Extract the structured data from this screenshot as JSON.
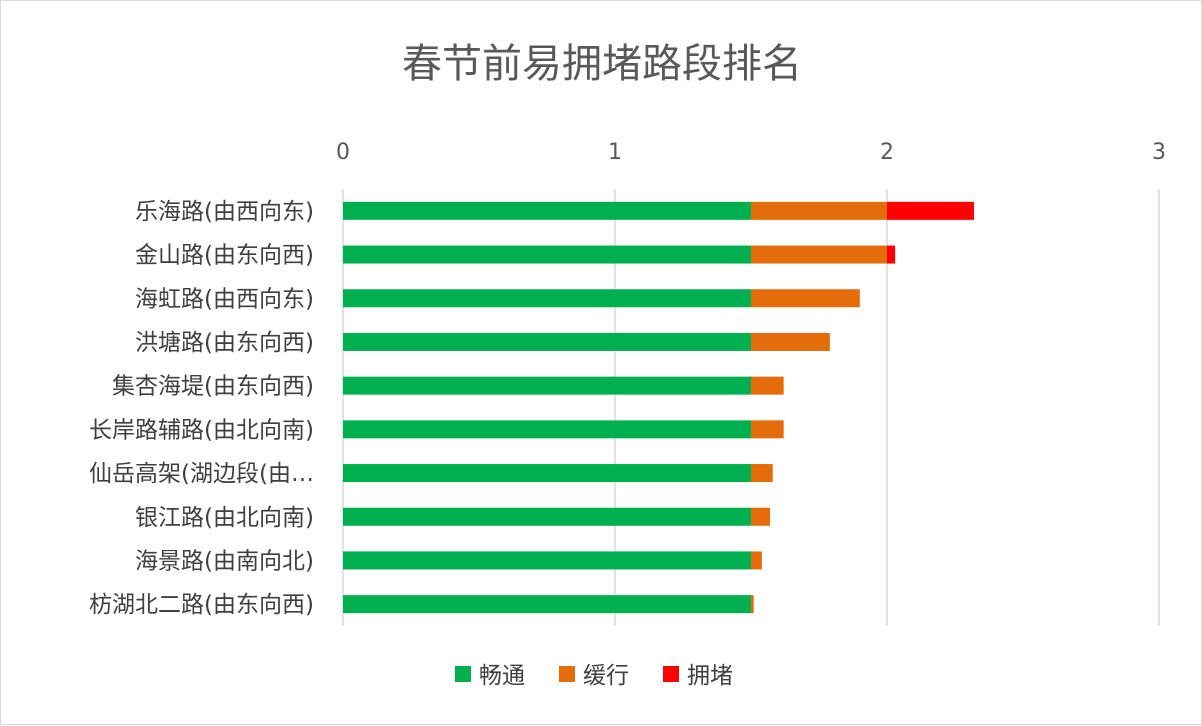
{
  "chart_data": {
    "type": "bar",
    "orientation": "horizontal",
    "stacked": true,
    "title": "春节前易拥堵路段排名",
    "categories": [
      "乐海路(由西向东)",
      "金山路(由东向西)",
      "海虹路(由西向东)",
      "洪塘路(由东向西)",
      "集杏海堤(由东向西)",
      "长岸路辅路(由北向南)",
      "仙岳高架(湖边段(由…",
      "银江路(由北向南)",
      "海景路(由南向北)",
      "枋湖北二路(由东向西)"
    ],
    "series": [
      {
        "name": "畅通",
        "color": "#00b050",
        "values": [
          1.5,
          1.5,
          1.5,
          1.5,
          1.5,
          1.5,
          1.5,
          1.5,
          1.5,
          1.5
        ]
      },
      {
        "name": "缓行",
        "color": "#e46c0a",
        "values": [
          0.5,
          0.5,
          0.4,
          0.29,
          0.12,
          0.12,
          0.08,
          0.07,
          0.04,
          0.01
        ]
      },
      {
        "name": "拥堵",
        "color": "#ff0000",
        "values": [
          0.32,
          0.03,
          0,
          0,
          0,
          0,
          0,
          0,
          0,
          0
        ]
      }
    ],
    "xlim": [
      0,
      3
    ],
    "xticks": [
      "0",
      "1",
      "2",
      "3"
    ],
    "axis_position": "top",
    "grid": true,
    "legend": "bottom"
  }
}
